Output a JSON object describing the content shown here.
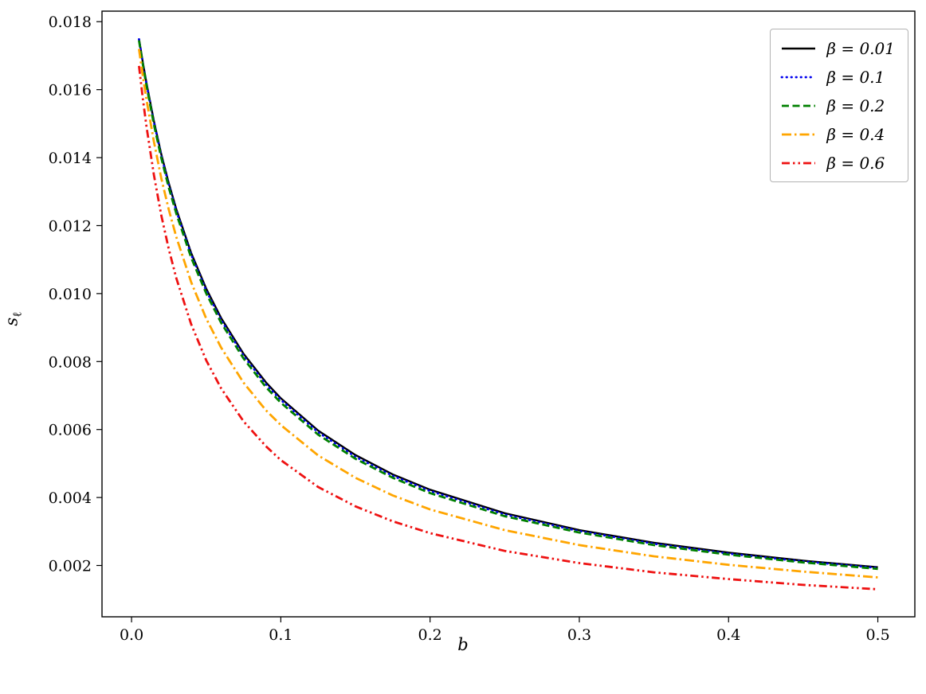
{
  "chart_data": {
    "type": "line",
    "title": "",
    "xlabel": "b",
    "ylabel_main": "s",
    "ylabel_sub": "ℓ",
    "xlim": [
      -0.0198,
      0.5248
    ],
    "ylim": [
      0.00049,
      0.01831
    ],
    "grid": false,
    "legend_position": "upper right",
    "xticks": [
      0.0,
      0.1,
      0.2,
      0.3,
      0.4,
      0.5
    ],
    "xticklabels": [
      "0.0",
      "0.1",
      "0.2",
      "0.3",
      "0.4",
      "0.5"
    ],
    "yticks": [
      0.002,
      0.004,
      0.006,
      0.008,
      0.01,
      0.012,
      0.014,
      0.016,
      0.018
    ],
    "yticklabels": [
      "0.002",
      "0.004",
      "0.006",
      "0.008",
      "0.010",
      "0.012",
      "0.014",
      "0.016",
      "0.018"
    ],
    "x": [
      0.005,
      0.0075,
      0.01,
      0.015,
      0.02,
      0.025,
      0.03,
      0.04,
      0.05,
      0.06,
      0.075,
      0.09,
      0.1,
      0.125,
      0.15,
      0.175,
      0.2,
      0.25,
      0.3,
      0.35,
      0.4,
      0.45,
      0.5
    ],
    "series": [
      {
        "name": "beta-0.01",
        "label": "β = 0.01",
        "color": "#000000",
        "dash": "",
        "width": 2.4,
        "values": [
          0.0175,
          0.01682,
          0.0162,
          0.01507,
          0.01409,
          0.01324,
          0.01248,
          0.01119,
          0.01015,
          0.00928,
          0.00823,
          0.00739,
          0.00692,
          0.00597,
          0.00525,
          0.00468,
          0.00423,
          0.00354,
          0.00304,
          0.00267,
          0.00238,
          0.00214,
          0.00195
        ]
      },
      {
        "name": "beta-0.1",
        "label": "β = 0.1",
        "color": "#0000ee",
        "dash": "0.5 5.5",
        "linecap": "round",
        "width": 2.8,
        "values": [
          0.01748,
          0.0168,
          0.01617,
          0.01504,
          0.01405,
          0.01319,
          0.01243,
          0.01114,
          0.01009,
          0.00922,
          0.00817,
          0.00733,
          0.00687,
          0.00592,
          0.0052,
          0.00464,
          0.00419,
          0.0035,
          0.00301,
          0.00264,
          0.00235,
          0.00212,
          0.00193
        ]
      },
      {
        "name": "beta-0.2",
        "label": "β = 0.2",
        "color": "#008000",
        "dash": "9 4.5",
        "linecap": "butt",
        "width": 2.8,
        "values": [
          0.01745,
          0.01676,
          0.01612,
          0.01497,
          0.01398,
          0.01311,
          0.01235,
          0.01105,
          0.01001,
          0.00914,
          0.00809,
          0.00725,
          0.00679,
          0.00585,
          0.00514,
          0.00458,
          0.00413,
          0.00345,
          0.00297,
          0.0026,
          0.00232,
          0.00209,
          0.0019
        ]
      },
      {
        "name": "beta-0.4",
        "label": "β = 0.4",
        "color": "#ffa500",
        "dash": "12 4 2.5 4",
        "linecap": "butt",
        "width": 2.8,
        "values": [
          0.0172,
          0.01642,
          0.01571,
          0.01446,
          0.01338,
          0.01246,
          0.01166,
          0.01033,
          0.00927,
          0.00841,
          0.00738,
          0.00657,
          0.00613,
          0.00524,
          0.00458,
          0.00406,
          0.00365,
          0.00304,
          0.0026,
          0.00227,
          0.00202,
          0.00182,
          0.00165
        ]
      },
      {
        "name": "beta-0.6",
        "label": "β = 0.6",
        "color": "#ee1111",
        "dash": "10 4 2.5 4 2.5 4",
        "linecap": "butt",
        "width": 2.8,
        "values": [
          0.0167,
          0.01576,
          0.01492,
          0.01348,
          0.01229,
          0.0113,
          0.01045,
          0.00909,
          0.00804,
          0.00721,
          0.00624,
          0.00551,
          0.0051,
          0.00431,
          0.00374,
          0.0033,
          0.00295,
          0.00243,
          0.00207,
          0.0018,
          0.0016,
          0.00143,
          0.0013
        ]
      }
    ]
  }
}
